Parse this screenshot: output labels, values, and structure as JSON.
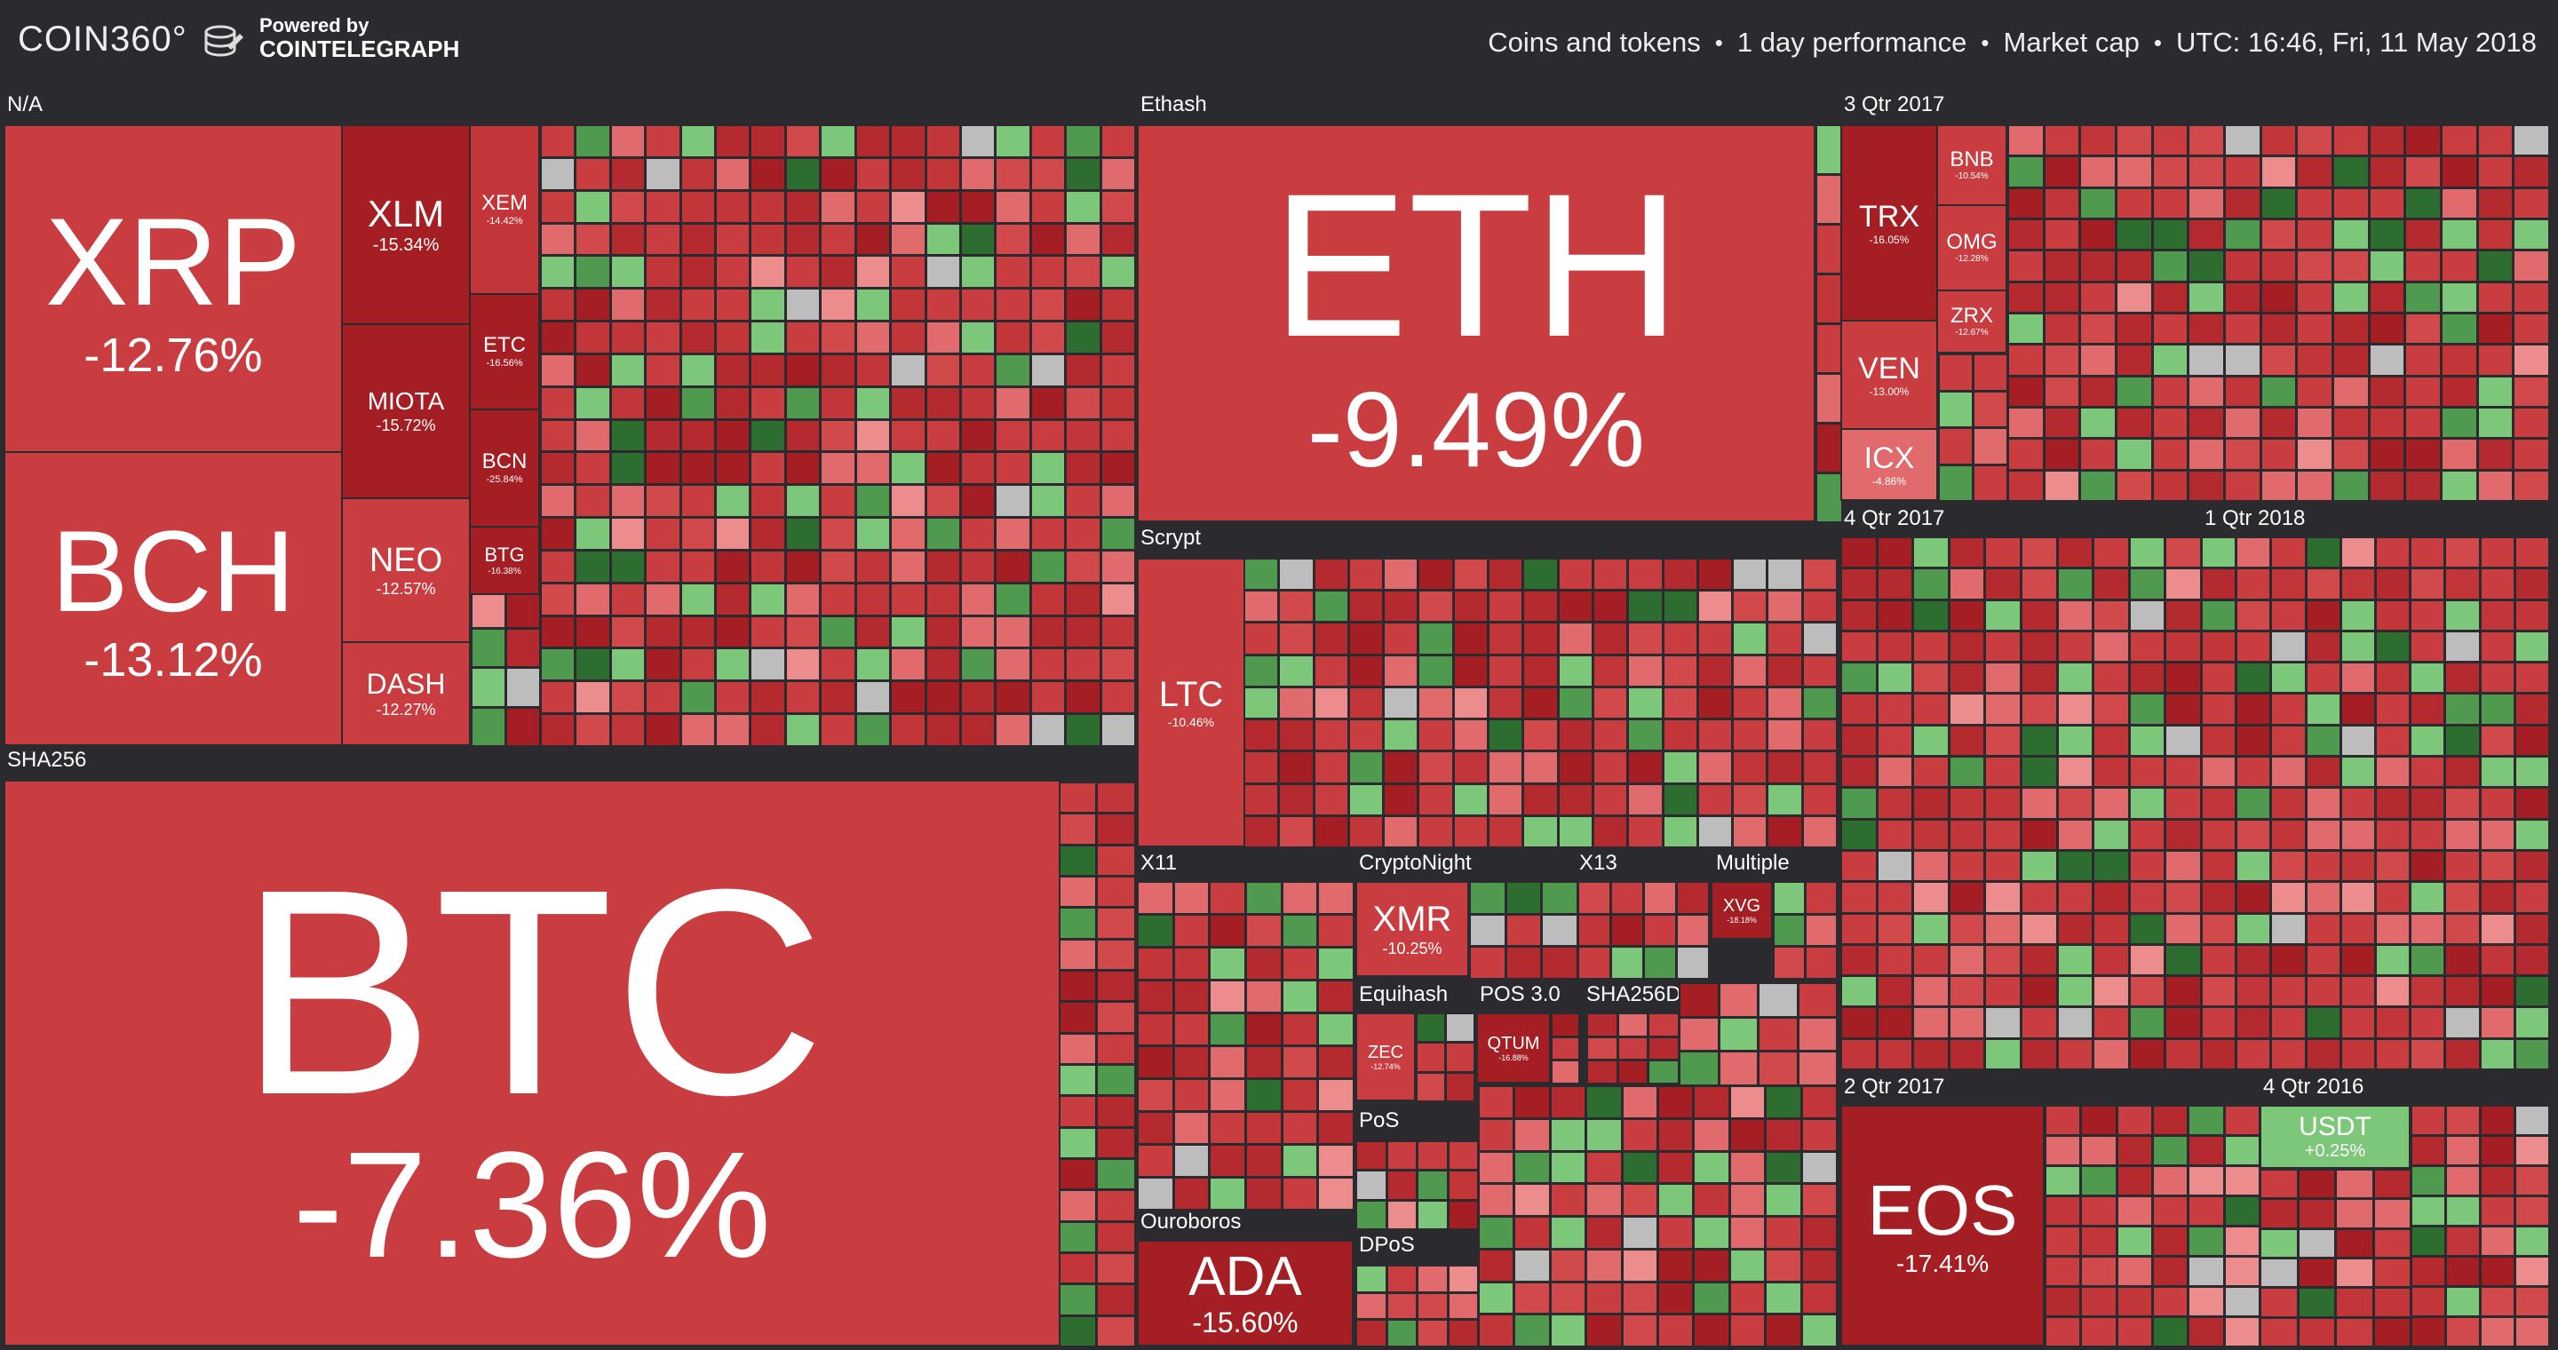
{
  "header": {
    "logo": "COIN360°",
    "powered_by": "Powered by",
    "partner": "COINTELEGRAPH",
    "filters": [
      "Coins and tokens",
      "1 day performance",
      "Market cap",
      "UTC: 16:46, Fri, 11 May 2018"
    ],
    "separator": "•"
  },
  "groups": [
    "N/A",
    "SHA256",
    "Ethash",
    "Scrypt",
    "X11",
    "CryptoNight",
    "X13",
    "Multiple",
    "Equihash",
    "POS 3.0",
    "SHA256D",
    "PoS",
    "DPoS",
    "Ouroboros",
    "3 Qtr 2017",
    "4 Qtr 2017",
    "1 Qtr 2018",
    "2 Qtr 2017",
    "4 Qtr 2016"
  ],
  "coins": [
    {
      "symbol": "XRP",
      "change": "-12.76%",
      "color": "#c93c3f"
    },
    {
      "symbol": "BCH",
      "change": "-13.12%",
      "color": "#c93c3f"
    },
    {
      "symbol": "XLM",
      "change": "-15.34%",
      "color": "#a51e23"
    },
    {
      "symbol": "MIOTA",
      "change": "-15.72%",
      "color": "#a51e23"
    },
    {
      "symbol": "NEO",
      "change": "-12.57%",
      "color": "#c93c3f"
    },
    {
      "symbol": "DASH",
      "change": "-12.27%",
      "color": "#c93c3f"
    },
    {
      "symbol": "XEM",
      "change": "-14.42%",
      "color": "#c2363a"
    },
    {
      "symbol": "ETC",
      "change": "-16.56%",
      "color": "#a51e23"
    },
    {
      "symbol": "BCN",
      "change": "-25.84%",
      "color": "#a51e23"
    },
    {
      "symbol": "BTG",
      "change": "-16.38%",
      "color": "#a51e23"
    },
    {
      "symbol": "BTC",
      "change": "-7.36%",
      "color": "#c93c3f"
    },
    {
      "symbol": "ETH",
      "change": "-9.49%",
      "color": "#c93c3f"
    },
    {
      "symbol": "LTC",
      "change": "-10.46%",
      "color": "#c93c3f"
    },
    {
      "symbol": "XMR",
      "change": "-10.25%",
      "color": "#c93c3f"
    },
    {
      "symbol": "XVG",
      "change": "-18.18%",
      "color": "#a51e23"
    },
    {
      "symbol": "ZEC",
      "change": "-12.74%",
      "color": "#c93c3f"
    },
    {
      "symbol": "QTUM",
      "change": "-16.88%",
      "color": "#a51e23"
    },
    {
      "symbol": "ADA",
      "change": "-15.60%",
      "color": "#a51e23"
    },
    {
      "symbol": "TRX",
      "change": "-16.05%",
      "color": "#a51e23"
    },
    {
      "symbol": "BNB",
      "change": "-10.54%",
      "color": "#c93c3f"
    },
    {
      "symbol": "OMG",
      "change": "-12.28%",
      "color": "#c93c3f"
    },
    {
      "symbol": "ZRX",
      "change": "-12.67%",
      "color": "#c93c3f"
    },
    {
      "symbol": "VEN",
      "change": "-13.00%",
      "color": "#c93c3f"
    },
    {
      "symbol": "ICX",
      "change": "-4.86%",
      "color": "#e06a6c"
    },
    {
      "symbol": "EOS",
      "change": "-17.41%",
      "color": "#a51e23"
    },
    {
      "symbol": "USDT",
      "change": "+0.25%",
      "color": "#7dc77a"
    }
  ],
  "palette": [
    "#c93c3f",
    "#b42a2e",
    "#a51e23",
    "#d2494c",
    "#e06a6c",
    "#ec8c8d",
    "#c2363a",
    "#4f9a4f",
    "#7dc77a",
    "#2d6e30",
    "#bdbdbd"
  ]
}
